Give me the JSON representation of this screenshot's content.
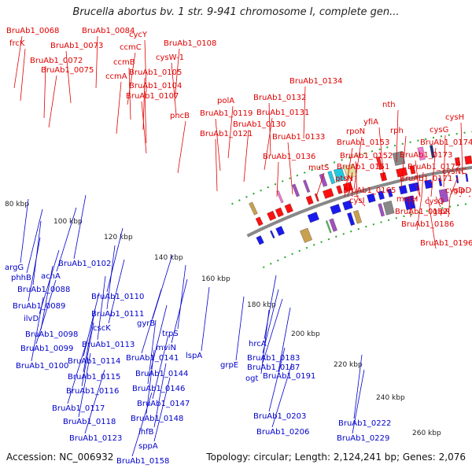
{
  "header": {
    "title": "Brucella abortus bv. 1 str. 9-941 chromosome I, complete gen..."
  },
  "footer": {
    "accession": "Accession: NC_006932",
    "summary": "Topology: circular; Length: 2,124,241 bp; Genes: 2,076"
  },
  "colors": {
    "forward_label": "#e00000",
    "reverse_label": "#0000cc",
    "backbone": "#888888"
  },
  "ticks": [
    "80 kbp",
    "100 kbp",
    "120 kbp",
    "140 kbp",
    "160 kbp",
    "180 kbp",
    "200 kbp",
    "220 kbp",
    "240 kbp",
    "260 kbp"
  ],
  "forward_labels": [
    "BruAb1_0068",
    "frcK",
    "BruAb1_0084",
    "cycY",
    "BruAb1_0073",
    "ccmC",
    "BruAb1_0108",
    "BruAb1_0072",
    "ccmB",
    "cysW-1",
    "BruAb1_0075",
    "ccmA",
    "BruAb1_0105",
    "BruAb1_0104",
    "BruAb1_0107",
    "pncB",
    "polA",
    "BruAb1_0134",
    "BruAb1_0132",
    "BruAb1_0119",
    "BruAb1_0131",
    "BruAb1_0130",
    "nth",
    "cysH",
    "yfiA",
    "rpoN",
    "rph",
    "cysG",
    "BruAb1_0121",
    "BruAb1_0133",
    "BruAb1_0153",
    "BruAb1_0174",
    "BruAb1_0136",
    "BruAb1_0152",
    "BruAb1_0173",
    "mutS",
    "BruAb1_0151",
    "BruAb1_0172",
    "ptsN",
    "BruAb1_0171",
    "cysNC",
    "BruAb1_0165",
    "cysD",
    "glpD",
    "metH",
    "cysI",
    "cysQ",
    "BruAb1_0182",
    "glpR",
    "BruAb1_0186",
    "BruAb1_0196"
  ],
  "reverse_labels": [
    "argG",
    "BruAb1_0102",
    "phhB",
    "acnA",
    "BruAb1_0088",
    "BruAb1_0089",
    "BruAb1_0110",
    "ilvD",
    "BruAb1_0111",
    "BruAb1_0098",
    "cscK",
    "BruAb1_0099",
    "BruAb1_0113",
    "BruAb1_0100",
    "BruAb1_0114",
    "gyrB",
    "trpS",
    "BruAb1_0115",
    "mviN",
    "BruAb1_0141",
    "lspA",
    "BruAb1_0116",
    "BruAb1_0144",
    "BruAb1_0117",
    "BruAb1_0146",
    "BruAb1_0118",
    "BruAb1_0147",
    "BruAb1_0123",
    "BruAb1_0148",
    "ihfB",
    "sppA",
    "BruAb1_0158",
    "grpE",
    "hrcA",
    "BruAb1_0183",
    "BruAb1_0187",
    "ogt",
    "BruAb1_0191",
    "BruAb1_0203",
    "BruAb1_0206",
    "BruAb1_0222",
    "BruAb1_0229"
  ]
}
